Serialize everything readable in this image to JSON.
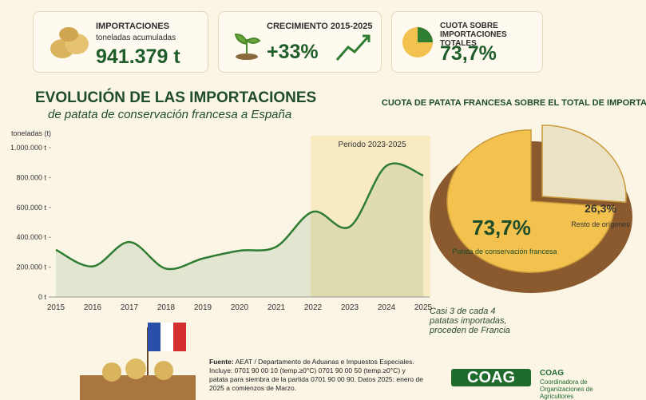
{
  "cards": [
    {
      "title": "IMPORTACIONES",
      "subtitle": "toneladas acumuladas",
      "value": "941.379 t"
    },
    {
      "title": "CRECIMIENTO 2015-2025",
      "value": "+33%"
    },
    {
      "title": "CUOTA SOBRE IMPORTACIONES TOTALES",
      "value": "73,7%"
    }
  ],
  "chart_data": [
    {
      "type": "line",
      "title": "EVOLUCIÓN DE LAS IMPORTACIONES",
      "subtitle": "de patata de conservación francesa a España",
      "ylabel": "toneladas (t)",
      "annotation": "Periodo 2023-2025",
      "categories": [
        "2015",
        "2016",
        "2017",
        "2018",
        "2019",
        "2020",
        "2021",
        "2022",
        "2023",
        "2024",
        "2025"
      ],
      "series": [
        {
          "name": "Importaciones",
          "color": "#2e7d32",
          "values": [
            316000,
            205000,
            368000,
            190000,
            258000,
            310000,
            337000,
            571000,
            471000,
            879000,
            814000
          ]
        }
      ],
      "ylim": [
        0,
        1000000
      ],
      "yticks": [
        {
          "value": 0,
          "label": "0 t"
        },
        {
          "value": 200000,
          "label": "200.000 t"
        },
        {
          "value": 400000,
          "label": "400.000 t"
        },
        {
          "value": 600000,
          "label": "600.000 t"
        },
        {
          "value": 800000,
          "label": "800.000 t"
        },
        {
          "value": 1000000,
          "label": "1.000.000 t"
        }
      ],
      "grid": false
    },
    {
      "type": "pie",
      "title": "CUOTA DE PATATA FRANCESA SOBRE EL TOTAL DE IMPORTACIONES",
      "categories": [
        "Patata de conservación francesa",
        "Resto de orígenes"
      ],
      "values": [
        73.7,
        26.3
      ],
      "value_labels": [
        "73,7%",
        "26,3%"
      ],
      "colors": [
        "#f2c14e",
        "#ece2c6"
      ]
    }
  ],
  "note": "Casi 3 de cada 4 patatas importadas, proceden de Francia",
  "source": {
    "label": "Fuente:",
    "text": "AEAT / Departamento de Aduanas e Impuestos Especiales. Incluye: 0701 90 00 10 (temp.≥0°C) 0701 90 00 50 (temp.≥0°C) y patata para siembra de la partida 0701 90 00 90. Datos 2025: enero de 2025 a comienzos de Marzo."
  },
  "logo": {
    "name": "COAG",
    "text": "Coordinadora de Organizaciones de Agricultores"
  }
}
